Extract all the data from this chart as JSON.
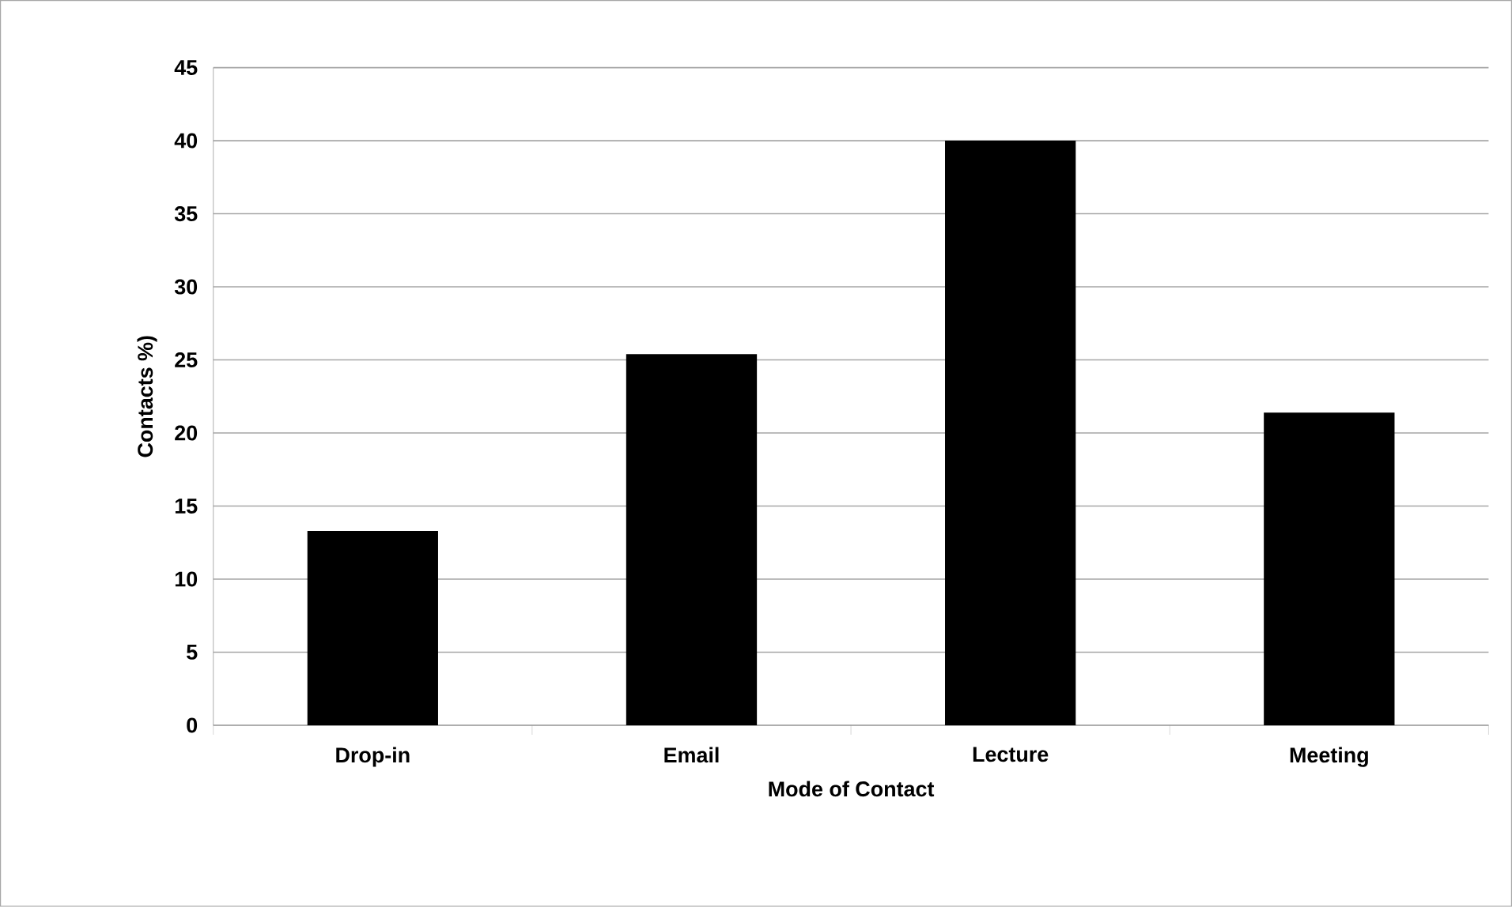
{
  "chart_data": {
    "type": "bar",
    "xlabel": "Mode of Contact",
    "ylabel": "Contacts %)",
    "categories": [
      "Drop-in",
      "Email",
      "Lecture",
      "Meeting"
    ],
    "values": [
      13.3,
      25.4,
      40,
      21.4
    ],
    "color": "#000000",
    "ylim": [
      0,
      45
    ],
    "yticks": [
      0,
      5,
      10,
      15,
      20,
      25,
      30,
      35,
      40,
      45
    ],
    "grid": "y"
  }
}
